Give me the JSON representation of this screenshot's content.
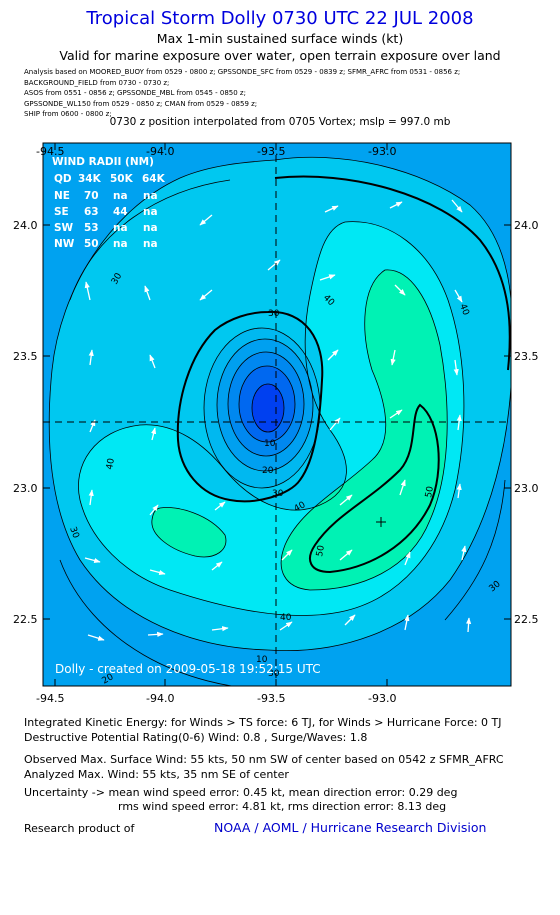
{
  "header": {
    "title": "Tropical Storm Dolly 0730 UTC 22 JUL 2008",
    "subtitle1": "Max 1-min sustained surface winds (kt)",
    "subtitle2": "Valid for marine exposure over water, open terrain exposure over land",
    "analysis_lines": [
      "Analysis based on  MOORED_BUOY from 0529 - 0800 z;  GPSSONDE_SFC from 0529 - 0839 z;  SFMR_AFRC from 0531 - 0856 z;",
      "BACKGROUND_FIELD from 0730 - 0730 z;",
      "ASOS from 0551 - 0856 z;  GPSSONDE_MBL from 0545 - 0850 z;",
      "GPSSONDE_WL150 from 0529 - 0850 z;  CMAN from 0529 - 0859 z;",
      "SHIP from 0600 - 0800 z;"
    ],
    "position_note": "0730 z position interpolated from 0705 Vortex; mslp = 997.0 mb"
  },
  "map": {
    "lon_ticks": [
      "-94.5",
      "-94.0",
      "-93.5",
      "-93.0"
    ],
    "lat_ticks": [
      "24.0",
      "23.5",
      "23.0",
      "22.5"
    ],
    "contour_labels": [
      "10",
      "20",
      "30",
      "30",
      "30",
      "30",
      "30",
      "40",
      "40",
      "40",
      "40",
      "40",
      "50",
      "50",
      "10",
      "20",
      "30"
    ],
    "wind_radii": {
      "title": "WIND RADII (NM)",
      "header": [
        "QD",
        "34K",
        "50K",
        "64K"
      ],
      "rows": [
        [
          "NE",
          "70",
          "na",
          "na"
        ],
        [
          "SE",
          "63",
          "44",
          "na"
        ],
        [
          "SW",
          "53",
          "na",
          "na"
        ],
        [
          "NW",
          "50",
          "na",
          "na"
        ]
      ]
    },
    "created": "Dolly - created on 2009-05-18 19:52:15 UTC",
    "colors": {
      "outer": "#00a2f0",
      "band30": "#00c8f0",
      "band40": "#00e8f4",
      "band50": "#00f2b4",
      "core": "#0040f0"
    }
  },
  "footer": {
    "ike": "Integrated Kinetic Energy:  for Winds > TS force: 6 TJ,  for Winds > Hurricane Force: 0 TJ",
    "dpr": "Destructive Potential Rating(0-6)   Wind: 0.8 , Surge/Waves: 1.8",
    "obs": "Observed Max. Surface Wind: 55 kts, 50 nm SW of center based on 0542 z SFMR_AFRC",
    "analyzed": "Analyzed Max. Wind: 55 kts, 35 nm SE of center",
    "unc1": "Uncertainty -> mean wind speed error: 0.45 kt,   mean direction error: 0.29 deg",
    "unc2": "rms wind speed error: 4.81 kt,   rms direction error: 8.13 deg",
    "research": "Research product of",
    "org": "NOAA / AOML / Hurricane Research Division"
  }
}
